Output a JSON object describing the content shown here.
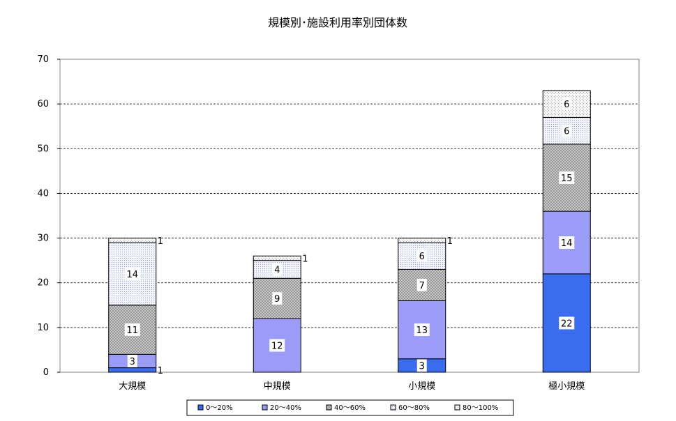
{
  "chart_data": {
    "type": "bar",
    "stacked": true,
    "title": "規模別･施設利用率別団体数",
    "xlabel": "",
    "ylabel": "",
    "ylim": [
      0,
      70
    ],
    "yticks": [
      "0",
      "10",
      "20",
      "30",
      "40",
      "50",
      "60",
      "70"
    ],
    "grid": true,
    "legend_position": "bottom",
    "categories": [
      "大規模",
      "中規模",
      "小規模",
      "極小規模"
    ],
    "series": [
      {
        "name": "0～20%",
        "values": [
          1,
          0,
          3,
          22
        ],
        "labels": [
          "1",
          "",
          "3",
          "22"
        ],
        "color": "#3a6cf0",
        "pattern": "solid"
      },
      {
        "name": "20～40%",
        "values": [
          3,
          12,
          13,
          14
        ],
        "labels": [
          "3",
          "12",
          "13",
          "14"
        ],
        "color": "#9a9cf8",
        "pattern": "solid"
      },
      {
        "name": "40～60%",
        "values": [
          11,
          9,
          7,
          15
        ],
        "labels": [
          "11",
          "9",
          "7",
          "15"
        ],
        "color": "#b8b8b8",
        "pattern": "cross"
      },
      {
        "name": "60～80%",
        "values": [
          14,
          4,
          6,
          6
        ],
        "labels": [
          "14",
          "4",
          "6",
          "6"
        ],
        "color": "#e8ecfa",
        "pattern": "dots"
      },
      {
        "name": "80～100%",
        "values": [
          1,
          1,
          1,
          6
        ],
        "labels": [
          "1",
          "1",
          "1",
          "6"
        ],
        "color": "#eeeeee",
        "pattern": "fine"
      }
    ]
  }
}
